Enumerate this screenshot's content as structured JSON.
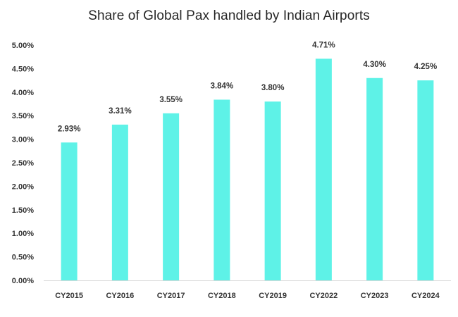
{
  "chart_data": {
    "type": "bar",
    "title": "Share of Global Pax handled by Indian Airports",
    "categories": [
      "CY2015",
      "CY2016",
      "CY2017",
      "CY2018",
      "CY2019",
      "CY2022",
      "CY2023",
      "CY2024"
    ],
    "values": [
      2.93,
      3.31,
      3.55,
      3.84,
      3.8,
      4.71,
      4.3,
      4.25
    ],
    "data_labels": [
      "2.93%",
      "3.31%",
      "3.55%",
      "3.84%",
      "3.80%",
      "4.71%",
      "4.30%",
      "4.25%"
    ],
    "y_ticks": [
      0,
      0.5,
      1.0,
      1.5,
      2.0,
      2.5,
      3.0,
      3.5,
      4.0,
      4.5,
      5.0
    ],
    "y_tick_labels": [
      "0.00%",
      "0.50%",
      "1.00%",
      "1.50%",
      "2.00%",
      "2.50%",
      "3.00%",
      "3.50%",
      "4.00%",
      "4.50%",
      "5.00%"
    ],
    "xlabel": "",
    "ylabel": "",
    "ylim": [
      0,
      5
    ],
    "grid": false,
    "legend": "none",
    "colors": {
      "bar": "#5EF2E7",
      "axis": "#D9D9D9",
      "text": "#333333"
    }
  }
}
